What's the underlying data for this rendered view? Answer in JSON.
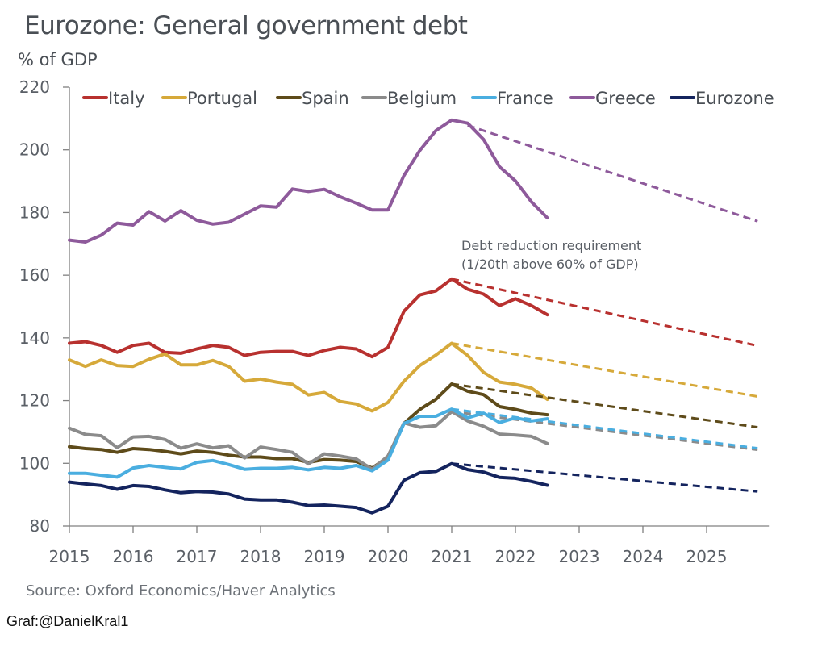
{
  "title": "Eurozone: General government debt",
  "y_unit": "% of GDP",
  "source": "Source: Oxford Economics/Haver Analytics",
  "credit": "Graf:@DanielKral1",
  "chart_data": {
    "type": "line",
    "title": "Eurozone: General government debt",
    "xlabel": "",
    "ylabel": "% of GDP",
    "ylim": [
      80,
      220
    ],
    "yticks": [
      80,
      100,
      120,
      140,
      160,
      180,
      200,
      220
    ],
    "xlim": [
      2015,
      2025.8
    ],
    "xticks": [
      "2015",
      "2016",
      "2017",
      "2018",
      "2019",
      "2020",
      "2021",
      "2022",
      "2023",
      "2024",
      "2025"
    ],
    "legend_position": "top",
    "grid": false,
    "x_start": "2015Q1",
    "x_step": "quarter",
    "annotation": {
      "line1": "Debt reduction requirement",
      "line2": "(1/20th above 60% of GDP)"
    },
    "series": [
      {
        "name": "Italy",
        "color": "#b8312f",
        "values": [
          138.3,
          138.8,
          137.6,
          135.4,
          137.6,
          138.3,
          135.4,
          135.1,
          136.5,
          137.6,
          137.0,
          134.4,
          135.4,
          135.7,
          135.7,
          134.4,
          136.0,
          137.0,
          136.5,
          134.0,
          137.0,
          148.5,
          153.7,
          155.0,
          158.8,
          155.5,
          154.0,
          150.3,
          152.5,
          150.3,
          147.4
        ],
        "projection": {
          "from": 2021.0,
          "from_value": 158.8,
          "to": 2025.8,
          "to_value": 137.5
        }
      },
      {
        "name": "Portugal",
        "color": "#d6a93a",
        "values": [
          133.0,
          130.9,
          133.0,
          131.2,
          130.9,
          133.2,
          134.9,
          131.4,
          131.4,
          132.8,
          130.9,
          126.2,
          126.9,
          125.9,
          125.2,
          121.8,
          122.6,
          119.7,
          118.9,
          116.7,
          119.4,
          126.2,
          131.2,
          134.5,
          138.3,
          134.4,
          129.0,
          125.9,
          125.2,
          124.0,
          120.4
        ],
        "projection": {
          "from": 2021.0,
          "from_value": 138.3,
          "to": 2025.8,
          "to_value": 121.3
        }
      },
      {
        "name": "Spain",
        "color": "#5e4b1a",
        "values": [
          105.3,
          104.7,
          104.4,
          103.5,
          104.7,
          104.4,
          103.8,
          103.0,
          103.9,
          103.5,
          102.6,
          102.0,
          102.0,
          101.5,
          101.5,
          100.3,
          101.2,
          101.0,
          100.6,
          98.5,
          101.9,
          112.7,
          117.2,
          120.4,
          125.3,
          123.0,
          121.9,
          118.1,
          117.2,
          116.0,
          115.5
        ],
        "projection": {
          "from": 2021.0,
          "from_value": 125.3,
          "to": 2025.8,
          "to_value": 111.5
        }
      },
      {
        "name": "Belgium",
        "color": "#8b8b8b",
        "values": [
          111.2,
          109.2,
          108.8,
          105.0,
          108.4,
          108.6,
          107.6,
          104.8,
          106.2,
          104.9,
          105.6,
          101.7,
          105.2,
          104.4,
          103.5,
          99.8,
          103.0,
          102.3,
          101.4,
          98.1,
          102.3,
          112.9,
          111.5,
          112.0,
          116.5,
          113.5,
          111.8,
          109.3,
          109.0,
          108.6,
          106.3
        ],
        "projection": {
          "from": 2021.0,
          "from_value": 116.5,
          "to": 2025.8,
          "to_value": 104.3
        }
      },
      {
        "name": "France",
        "color": "#4aaee0",
        "values": [
          96.8,
          96.8,
          96.2,
          95.6,
          98.5,
          99.3,
          98.7,
          98.2,
          100.3,
          100.9,
          99.6,
          98.1,
          98.4,
          98.4,
          98.7,
          97.9,
          98.7,
          98.4,
          99.3,
          97.6,
          101.0,
          112.7,
          115.0,
          115.0,
          117.3,
          114.5,
          116.0,
          113.0,
          114.5,
          113.5,
          114.2
        ],
        "projection": {
          "from": 2021.0,
          "from_value": 117.3,
          "to": 2025.8,
          "to_value": 104.8
        }
      },
      {
        "name": "Greece",
        "color": "#8e5a9b",
        "values": [
          171.2,
          170.6,
          172.8,
          176.6,
          176.0,
          180.3,
          177.3,
          180.6,
          177.5,
          176.3,
          176.9,
          179.5,
          182.1,
          181.7,
          187.5,
          186.7,
          187.4,
          185.0,
          183.0,
          180.8,
          180.8,
          191.8,
          199.8,
          206.1,
          209.5,
          208.5,
          203.3,
          194.6,
          190.1,
          183.4,
          178.3
        ],
        "projection": {
          "from": 2021.25,
          "from_value": 207.8,
          "to": 2025.8,
          "to_value": 177.2
        }
      },
      {
        "name": "Eurozone",
        "color": "#14245e",
        "values": [
          94.0,
          93.4,
          92.9,
          91.7,
          92.9,
          92.6,
          91.5,
          90.6,
          91.0,
          90.8,
          90.2,
          88.6,
          88.3,
          88.3,
          87.6,
          86.5,
          86.7,
          86.3,
          85.9,
          84.2,
          86.3,
          94.6,
          97.0,
          97.4,
          99.9,
          98.0,
          97.2,
          95.5,
          95.2,
          94.2,
          93.0
        ],
        "projection": {
          "from": 2021.0,
          "from_value": 99.9,
          "to": 2025.8,
          "to_value": 91.0
        }
      }
    ]
  }
}
